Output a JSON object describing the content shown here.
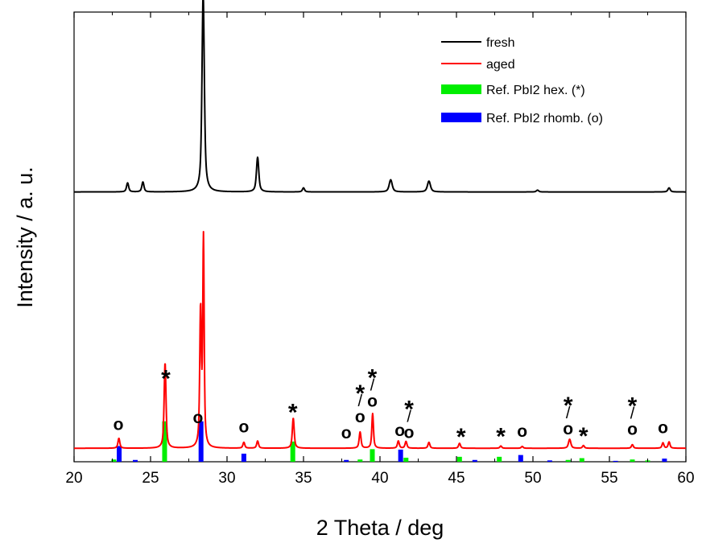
{
  "chart_data": {
    "type": "line",
    "xlabel": "2 Theta / deg",
    "ylabel": "Intensity / a. u.",
    "xlim": [
      20,
      60
    ],
    "xticks": [
      20,
      25,
      30,
      35,
      40,
      45,
      50,
      55,
      60
    ],
    "yticks_shown": false,
    "legend_position": "top-right",
    "legend": [
      {
        "label": "fresh",
        "type": "line",
        "color": "#000000"
      },
      {
        "label": "aged",
        "type": "line",
        "color": "#ff0000"
      },
      {
        "label": "Ref. PbI2 hex. (*)",
        "type": "bar",
        "color": "#00ee00"
      },
      {
        "label": "Ref. PbI2 rhomb. (o)",
        "type": "bar",
        "color": "#0000ff"
      }
    ],
    "series": [
      {
        "name": "fresh",
        "color": "#000000",
        "baseline": 0.6,
        "peaks": [
          {
            "x": 23.5,
            "h": 0.02,
            "w": 0.09
          },
          {
            "x": 24.5,
            "h": 0.022,
            "w": 0.09
          },
          {
            "x": 28.44,
            "h": 0.44,
            "w": 0.1
          },
          {
            "x": 32.0,
            "h": 0.077,
            "w": 0.1
          },
          {
            "x": 35.0,
            "h": 0.009,
            "w": 0.09
          },
          {
            "x": 40.7,
            "h": 0.027,
            "w": 0.13
          },
          {
            "x": 43.2,
            "h": 0.024,
            "w": 0.13
          },
          {
            "x": 50.3,
            "h": 0.004,
            "w": 0.1
          },
          {
            "x": 58.9,
            "h": 0.009,
            "w": 0.1
          }
        ]
      },
      {
        "name": "aged",
        "color": "#ff0000",
        "baseline": 0.03,
        "peaks": [
          {
            "x": 22.93,
            "h": 0.022,
            "w": 0.08
          },
          {
            "x": 25.95,
            "h": 0.19,
            "w": 0.08
          },
          {
            "x": 28.27,
            "h": 0.3,
            "w": 0.07
          },
          {
            "x": 28.46,
            "h": 0.46,
            "w": 0.06
          },
          {
            "x": 31.1,
            "h": 0.013,
            "w": 0.08
          },
          {
            "x": 32.0,
            "h": 0.016,
            "w": 0.08
          },
          {
            "x": 34.33,
            "h": 0.067,
            "w": 0.08
          },
          {
            "x": 38.7,
            "h": 0.036,
            "w": 0.08
          },
          {
            "x": 39.52,
            "h": 0.077,
            "w": 0.07
          },
          {
            "x": 41.2,
            "h": 0.016,
            "w": 0.08
          },
          {
            "x": 41.7,
            "h": 0.015,
            "w": 0.08
          },
          {
            "x": 43.2,
            "h": 0.013,
            "w": 0.08
          },
          {
            "x": 45.2,
            "h": 0.011,
            "w": 0.08
          },
          {
            "x": 47.9,
            "h": 0.005,
            "w": 0.08
          },
          {
            "x": 49.3,
            "h": 0.004,
            "w": 0.08
          },
          {
            "x": 52.4,
            "h": 0.02,
            "w": 0.1
          },
          {
            "x": 53.3,
            "h": 0.006,
            "w": 0.08
          },
          {
            "x": 56.5,
            "h": 0.008,
            "w": 0.08
          },
          {
            "x": 58.5,
            "h": 0.012,
            "w": 0.08
          },
          {
            "x": 58.9,
            "h": 0.014,
            "w": 0.08
          }
        ]
      }
    ],
    "reference_hex": {
      "name": "Ref. PbI2 hex.",
      "color": "#00ee00",
      "bars": [
        {
          "x": 22.6,
          "h": 0.005
        },
        {
          "x": 25.92,
          "h": 0.09
        },
        {
          "x": 34.3,
          "h": 0.045
        },
        {
          "x": 38.7,
          "h": 0.005
        },
        {
          "x": 39.5,
          "h": 0.028
        },
        {
          "x": 41.7,
          "h": 0.009
        },
        {
          "x": 45.2,
          "h": 0.011
        },
        {
          "x": 47.8,
          "h": 0.011
        },
        {
          "x": 52.3,
          "h": 0.004
        },
        {
          "x": 53.2,
          "h": 0.008
        },
        {
          "x": 56.5,
          "h": 0.005
        },
        {
          "x": 57.5,
          "h": 0.003
        }
      ]
    },
    "reference_rhomb": {
      "name": "Ref. PbI2 rhomb.",
      "color": "#0000ff",
      "bars": [
        {
          "x": 22.95,
          "h": 0.035
        },
        {
          "x": 24.0,
          "h": 0.004
        },
        {
          "x": 28.3,
          "h": 0.09
        },
        {
          "x": 31.1,
          "h": 0.018
        },
        {
          "x": 37.8,
          "h": 0.004
        },
        {
          "x": 39.5,
          "h": 0.012
        },
        {
          "x": 41.35,
          "h": 0.027
        },
        {
          "x": 46.2,
          "h": 0.004
        },
        {
          "x": 49.2,
          "h": 0.015
        },
        {
          "x": 51.1,
          "h": 0.003
        },
        {
          "x": 52.3,
          "h": 0.003
        },
        {
          "x": 55.4,
          "h": 0.002
        },
        {
          "x": 58.6,
          "h": 0.007
        }
      ]
    },
    "annotations": [
      {
        "x": 22.9,
        "text": "o",
        "kind": "o"
      },
      {
        "x": 26.0,
        "text": "*",
        "kind": "star"
      },
      {
        "x": 28.1,
        "text": "o",
        "kind": "o"
      },
      {
        "x": 31.1,
        "text": "o",
        "kind": "o"
      },
      {
        "x": 34.3,
        "text": "*",
        "kind": "star"
      },
      {
        "x": 37.8,
        "text": "o",
        "kind": "o"
      },
      {
        "x": 38.7,
        "text": "o/*",
        "kind": "stack"
      },
      {
        "x": 39.5,
        "text": "o/*",
        "kind": "stack"
      },
      {
        "x": 41.3,
        "text": "o",
        "kind": "o"
      },
      {
        "x": 41.9,
        "text": "o/*",
        "kind": "stack"
      },
      {
        "x": 45.3,
        "text": "*",
        "kind": "star"
      },
      {
        "x": 47.9,
        "text": "*",
        "kind": "star"
      },
      {
        "x": 49.3,
        "text": "o",
        "kind": "o"
      },
      {
        "x": 52.3,
        "text": "o/*",
        "kind": "stack"
      },
      {
        "x": 53.3,
        "text": "*",
        "kind": "star"
      },
      {
        "x": 56.5,
        "text": "o/*",
        "kind": "stack"
      },
      {
        "x": 58.5,
        "text": "o",
        "kind": "o"
      }
    ]
  }
}
